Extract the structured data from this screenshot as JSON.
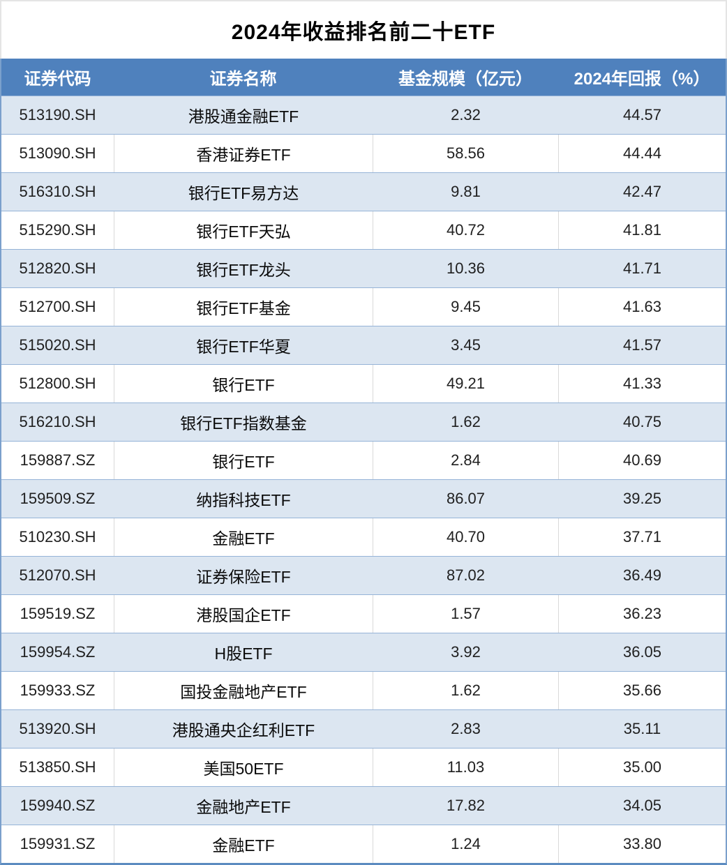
{
  "title": "2024年收益排名前二十ETF",
  "table": {
    "headers": [
      "证券代码",
      "证券名称",
      "基金规模（亿元）",
      "2024年回报（%）"
    ],
    "rows": [
      {
        "code": "513190.SH",
        "name": "港股通金融ETF",
        "size": "2.32",
        "ret": "44.57"
      },
      {
        "code": "513090.SH",
        "name": "香港证券ETF",
        "size": "58.56",
        "ret": "44.44"
      },
      {
        "code": "516310.SH",
        "name": "银行ETF易方达",
        "size": "9.81",
        "ret": "42.47"
      },
      {
        "code": "515290.SH",
        "name": "银行ETF天弘",
        "size": "40.72",
        "ret": "41.81"
      },
      {
        "code": "512820.SH",
        "name": "银行ETF龙头",
        "size": "10.36",
        "ret": "41.71"
      },
      {
        "code": "512700.SH",
        "name": "银行ETF基金",
        "size": "9.45",
        "ret": "41.63"
      },
      {
        "code": "515020.SH",
        "name": "银行ETF华夏",
        "size": "3.45",
        "ret": "41.57"
      },
      {
        "code": "512800.SH",
        "name": "银行ETF",
        "size": "49.21",
        "ret": "41.33"
      },
      {
        "code": "516210.SH",
        "name": "银行ETF指数基金",
        "size": "1.62",
        "ret": "40.75"
      },
      {
        "code": "159887.SZ",
        "name": "银行ETF",
        "size": "2.84",
        "ret": "40.69"
      },
      {
        "code": "159509.SZ",
        "name": "纳指科技ETF",
        "size": "86.07",
        "ret": "39.25"
      },
      {
        "code": "510230.SH",
        "name": "金融ETF",
        "size": "40.70",
        "ret": "37.71"
      },
      {
        "code": "512070.SH",
        "name": "证券保险ETF",
        "size": "87.02",
        "ret": "36.49"
      },
      {
        "code": "159519.SZ",
        "name": "港股国企ETF",
        "size": "1.57",
        "ret": "36.23"
      },
      {
        "code": "159954.SZ",
        "name": "H股ETF",
        "size": "3.92",
        "ret": "36.05"
      },
      {
        "code": "159933.SZ",
        "name": "国投金融地产ETF",
        "size": "1.62",
        "ret": "35.66"
      },
      {
        "code": "513920.SH",
        "name": "港股通央企红利ETF",
        "size": "2.83",
        "ret": "35.11"
      },
      {
        "code": "513850.SH",
        "name": "美国50ETF",
        "size": "11.03",
        "ret": "35.00"
      },
      {
        "code": "159940.SZ",
        "name": "金融地产ETF",
        "size": "17.82",
        "ret": "34.05"
      },
      {
        "code": "159931.SZ",
        "name": "金融ETF",
        "size": "1.24",
        "ret": "33.80"
      }
    ]
  },
  "colors": {
    "header_bg": "#4f81bd",
    "alt_row_bg": "#dce6f1",
    "row_border": "#95b3d7",
    "outer_border": "#7ba0cc",
    "header_text": "#ffffff",
    "body_text": "#1f1f1f"
  }
}
